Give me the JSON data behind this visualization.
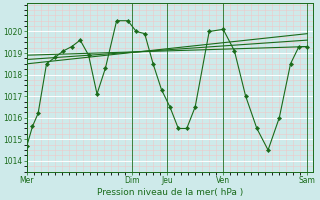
{
  "background_color": "#ceeaea",
  "grid_major_color": "#ffffff",
  "grid_minor_color": "#f0c8c8",
  "line_color": "#1a6b1a",
  "xlabel": "Pression niveau de la mer( hPa )",
  "ylim": [
    1013.5,
    1021.3
  ],
  "yticks": [
    1014,
    1015,
    1016,
    1017,
    1018,
    1019,
    1020
  ],
  "xtick_labels": [
    "Mer",
    "Dim",
    "Jeu",
    "Ven",
    "Sam"
  ],
  "xtick_positions": [
    0.0,
    0.375,
    0.5,
    0.7,
    1.0
  ],
  "vline_positions": [
    0.0,
    0.375,
    0.5,
    0.7,
    1.0
  ],
  "figsize": [
    3.2,
    2.0
  ],
  "dpi": 100,
  "main_series_x": [
    0.0,
    0.02,
    0.04,
    0.07,
    0.1,
    0.13,
    0.16,
    0.19,
    0.22,
    0.25,
    0.28,
    0.32,
    0.36,
    0.39,
    0.42,
    0.45,
    0.48,
    0.51,
    0.54,
    0.57,
    0.6,
    0.65,
    0.7,
    0.74,
    0.78,
    0.82,
    0.86,
    0.9,
    0.94,
    0.97,
    1.0
  ],
  "main_series_y": [
    1014.7,
    1015.6,
    1016.2,
    1018.5,
    1018.8,
    1019.1,
    1019.3,
    1019.6,
    1018.9,
    1017.1,
    1018.3,
    1020.5,
    1020.5,
    1020.0,
    1019.9,
    1018.5,
    1017.3,
    1016.5,
    1015.5,
    1015.5,
    1016.5,
    1020.0,
    1020.1,
    1019.1,
    1017.0,
    1015.5,
    1014.5,
    1016.0,
    1018.5,
    1019.3,
    1019.3
  ],
  "trend_lines": [
    {
      "x": [
        0.0,
        1.0
      ],
      "y": [
        1018.5,
        1019.9
      ]
    },
    {
      "x": [
        0.0,
        1.0
      ],
      "y": [
        1018.7,
        1019.6
      ]
    },
    {
      "x": [
        0.0,
        1.0
      ],
      "y": [
        1018.9,
        1019.3
      ]
    }
  ],
  "xlim": [
    0.0,
    1.02
  ]
}
